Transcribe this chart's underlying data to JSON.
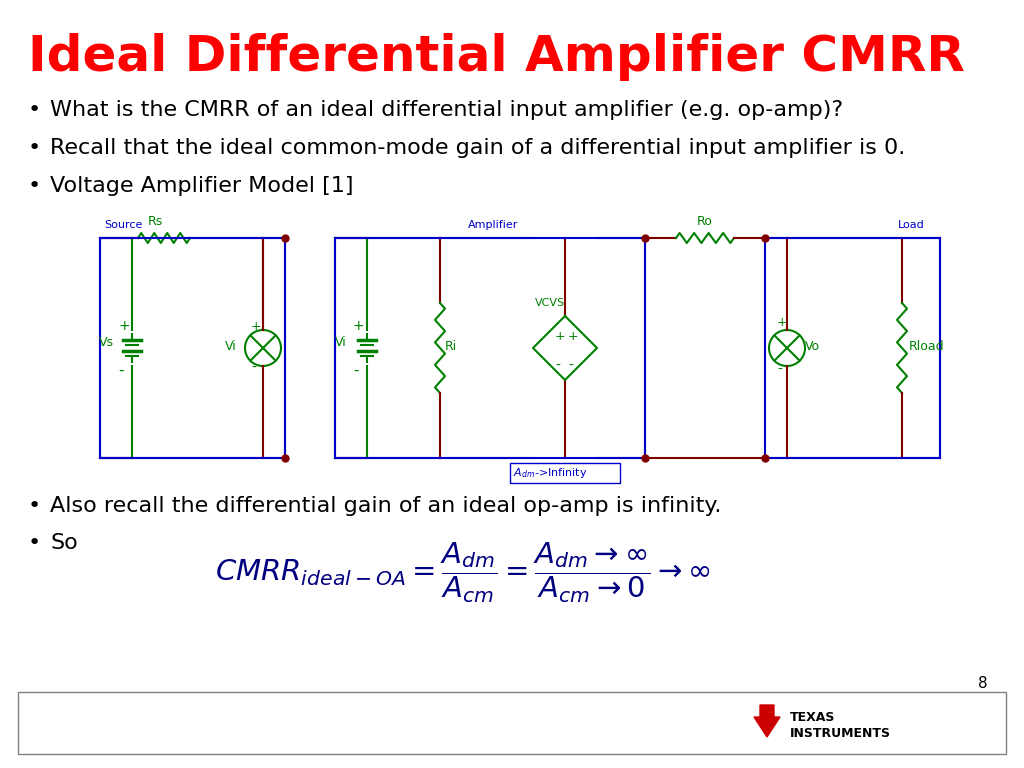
{
  "title": "Ideal Differential Amplifier CMRR",
  "title_color": "#FF0000",
  "title_fontsize": 36,
  "bg_color": "#FFFFFF",
  "bullet_color": "#000000",
  "bullet_fontsize": 16,
  "circuit_box_color": "#0000CC",
  "component_color": "#008000",
  "wire_color": "#800000",
  "dot_color": "#800000",
  "page_number": "8",
  "footer_border_color": "#808080",
  "ti_red": "#CC0000",
  "bullet1": "What is the CMRR of an ideal differential input amplifier (e.g. op-amp)?",
  "bullet2": "Recall that the ideal common-mode gain of a differential input amplifier is 0.",
  "bullet3": "Voltage Amplifier Model [1]",
  "bullet4": "Also recall the differential gain of an ideal op-amp is infinity.",
  "bullet5": "So"
}
